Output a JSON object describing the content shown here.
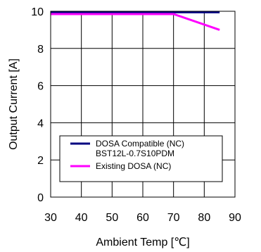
{
  "chart_data": {
    "type": "line",
    "xlabel": "Ambient Temp [℃]",
    "ylabel": "Output Current [A]",
    "xlim": [
      30,
      90
    ],
    "ylim": [
      0,
      10
    ],
    "x_ticks": [
      30,
      40,
      50,
      60,
      70,
      80,
      90
    ],
    "y_ticks": [
      0,
      2,
      4,
      6,
      8,
      10
    ],
    "grid": true,
    "legend_position": "bottom-left",
    "series": [
      {
        "name": "DOSA Compatible (NC)\nBST12L-0.7S10PDM",
        "legend_lines": [
          "DOSA Compatible (NC)",
          "BST12L-0.7S10PDM"
        ],
        "color": "#000080",
        "x": [
          30,
          85
        ],
        "y": [
          9.95,
          9.95
        ]
      },
      {
        "name": "Existing DOSA (NC)",
        "legend_lines": [
          "Existing DOSA (NC)"
        ],
        "color": "#ff00ff",
        "x": [
          30,
          70,
          85
        ],
        "y": [
          9.85,
          9.85,
          9.0
        ]
      }
    ]
  }
}
